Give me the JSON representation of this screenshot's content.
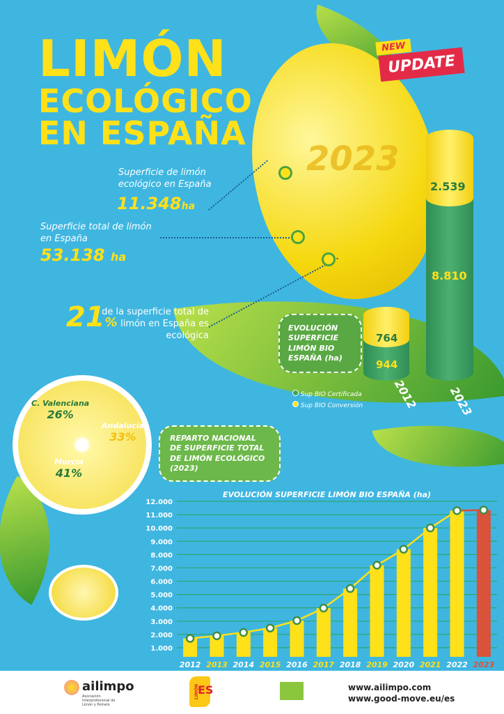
{
  "title": {
    "line1": "LIMÓN",
    "line2": "ECOLÓGICO",
    "line3": "EN ESPAÑA"
  },
  "badge": {
    "new": "NEW",
    "update": "UPDATE"
  },
  "year_watermark": "2023",
  "stats": [
    {
      "label": "Superficie de limón ecológico en España",
      "value": "11.348",
      "unit": "ha"
    },
    {
      "label": "Superficie total de limón en España",
      "value": "53.138",
      "unit": "ha"
    },
    {
      "value": "21",
      "unit": "%",
      "label": "de la superficie total de limón en España es ecológica"
    }
  ],
  "evolucion_box": {
    "title": "EVOLUCIÓN SUPERFICIE LIMÓN BIO ESPAÑA (ha)"
  },
  "cylinders": [
    {
      "year": "2012",
      "conversion": "764",
      "certificada": "944"
    },
    {
      "year": "2023",
      "conversion": "2.539",
      "certificada": "8.810"
    }
  ],
  "legend": [
    {
      "label": "Sup BIO Certificada",
      "color": "#3e9e5a"
    },
    {
      "label": "Sup BIO Conversión",
      "color": "#ffe11a"
    }
  ],
  "reparto": {
    "title": "REPARTO NACIONAL DE SUPERFICIE TOTAL DE LIMÓN ECOLÓGICO (2023)",
    "regions": [
      {
        "name": "C. Valenciana",
        "pct": "26%"
      },
      {
        "name": "Andalucía",
        "pct": "33%"
      },
      {
        "name": "Murcia",
        "pct": "41%"
      }
    ]
  },
  "chart_data": {
    "type": "bar",
    "title": "EVOLUCIÓN SUPERFICIE LIMÓN BIO ESPAÑA (ha)",
    "categories": [
      "2012",
      "2013",
      "2014",
      "2015",
      "2016",
      "2017",
      "2018",
      "2019",
      "2020",
      "2021",
      "2022",
      "2023"
    ],
    "values": [
      1700,
      1900,
      2150,
      2480,
      3040,
      3980,
      5450,
      7200,
      8400,
      10000,
      11300,
      11348
    ],
    "yticks": [
      "1.000",
      "2.000",
      "3.000",
      "4.000",
      "5.000",
      "6.000",
      "7.000",
      "8.000",
      "9.000",
      "10.000",
      "11.000",
      "12.000"
    ],
    "ylim": [
      0,
      12000
    ],
    "colors": {
      "bar": "#ffe11a",
      "highlight": "#d9523a",
      "line": "#ffe11a",
      "grid": "#2fa56a"
    }
  },
  "footer": {
    "org": "ailimpo",
    "org_sub": "Asociación Interprofesional de Limón y Pomelo",
    "brand": "ES",
    "brand_side": "LIMÓN",
    "url1": "www.ailimpo.com",
    "url2": "www.good-move.eu/es"
  }
}
